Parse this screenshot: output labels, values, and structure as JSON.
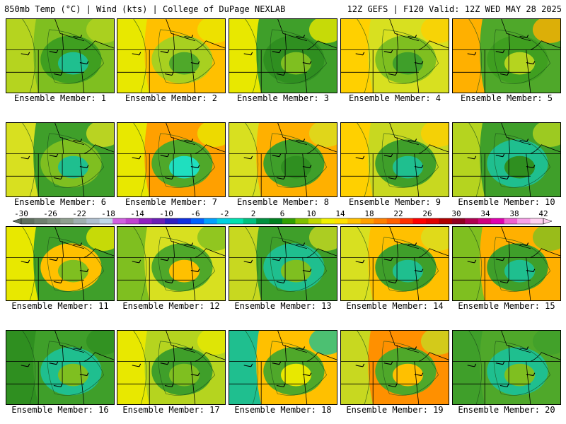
{
  "header": {
    "left": "850mb Temp (°C) | Wind (kts) | College of DuPage NEXLAB",
    "right": "12Z GEFS | F120 Valid: 12Z WED MAY 28 2025"
  },
  "colorbar": {
    "labels": [
      "-30",
      "-26",
      "-22",
      "-18",
      "-14",
      "-10",
      "-6",
      "-2",
      "2",
      "6",
      "10",
      "14",
      "18",
      "22",
      "26",
      "30",
      "34",
      "38",
      "42"
    ],
    "colors": [
      "#5f6f5f",
      "#6f7f6f",
      "#7f8f7f",
      "#8f9f8f",
      "#9fafaf",
      "#afbfcf",
      "#c0d8e8",
      "#d060e0",
      "#c040d0",
      "#9020c0",
      "#6a1fb5",
      "#3020c0",
      "#1030e0",
      "#0060ff",
      "#00a0ff",
      "#00d0e0",
      "#00e0b0",
      "#00c080",
      "#009040",
      "#008020",
      "#30a000",
      "#80c000",
      "#c0d800",
      "#f0f000",
      "#ffe000",
      "#ffc000",
      "#ffa000",
      "#ff8000",
      "#ff6000",
      "#ff3000",
      "#ff0000",
      "#e00000",
      "#b00000",
      "#900020",
      "#b00050",
      "#d00080",
      "#e000b0",
      "#f060d0",
      "#f8a0e8",
      "#ffd0f0"
    ]
  },
  "members": [
    {
      "label": "Ensemble Member: 1",
      "scheme": [
        "#7fbf20",
        "#3f9f20",
        "#1fbf8f",
        "#b5d41f"
      ]
    },
    {
      "label": "Ensemble Member: 2",
      "scheme": [
        "#ffc000",
        "#a8d020",
        "#4fa82a",
        "#e8e800"
      ]
    },
    {
      "label": "Ensemble Member: 3",
      "scheme": [
        "#3f9f2a",
        "#2f8f20",
        "#7fbf20",
        "#e8e800"
      ]
    },
    {
      "label": "Ensemble Member: 4",
      "scheme": [
        "#d8e020",
        "#7fbf20",
        "#3f9f2a",
        "#ffd000"
      ]
    },
    {
      "label": "Ensemble Member: 5",
      "scheme": [
        "#4fa82a",
        "#3f9f20",
        "#b5d41f",
        "#ffb000"
      ]
    },
    {
      "label": "Ensemble Member: 6",
      "scheme": [
        "#3f9f2a",
        "#7fbf20",
        "#1fbf8f",
        "#d8e020"
      ]
    },
    {
      "label": "Ensemble Member: 7",
      "scheme": [
        "#ffa000",
        "#4fa82a",
        "#1fdfbf",
        "#e8e800"
      ]
    },
    {
      "label": "Ensemble Member: 8",
      "scheme": [
        "#ffb000",
        "#3f9f2a",
        "#2f8f20",
        "#d8e020"
      ]
    },
    {
      "label": "Ensemble Member: 9",
      "scheme": [
        "#c8d820",
        "#3f9f2a",
        "#1fbf8f",
        "#ffd000"
      ]
    },
    {
      "label": "Ensemble Member: 10",
      "scheme": [
        "#3f9f2a",
        "#1fbf8f",
        "#2f8f20",
        "#b5d41f"
      ]
    },
    {
      "label": "Ensemble Member: 11",
      "scheme": [
        "#3f9f2a",
        "#ffc000",
        "#7fbf20",
        "#e8e800"
      ]
    },
    {
      "label": "Ensemble Member: 12",
      "scheme": [
        "#d8e020",
        "#4fa82a",
        "#ffc000",
        "#7fbf20"
      ]
    },
    {
      "label": "Ensemble Member: 13",
      "scheme": [
        "#3f9f2a",
        "#1fbf8f",
        "#7fbf20",
        "#c8d820"
      ]
    },
    {
      "label": "Ensemble Member: 14",
      "scheme": [
        "#ffc000",
        "#3f9f2a",
        "#1fbf8f",
        "#d8e020"
      ]
    },
    {
      "label": "Ensemble Member: 15",
      "scheme": [
        "#ffb000",
        "#3f9f2a",
        "#1fbf8f",
        "#7fbf20"
      ]
    },
    {
      "label": "Ensemble Member: 16",
      "scheme": [
        "#3f9f2a",
        "#1fbf8f",
        "#7fbf20",
        "#2f8f20"
      ]
    },
    {
      "label": "Ensemble Member: 17",
      "scheme": [
        "#b5d41f",
        "#3f9f2a",
        "#7fbf20",
        "#e8e800"
      ]
    },
    {
      "label": "Ensemble Member: 18",
      "scheme": [
        "#ffc000",
        "#4fa82a",
        "#e8e800",
        "#1fbf8f"
      ]
    },
    {
      "label": "Ensemble Member: 19",
      "scheme": [
        "#ff9000",
        "#4fa82a",
        "#ffc000",
        "#c8d820"
      ]
    },
    {
      "label": "Ensemble Member: 20",
      "scheme": [
        "#4fa82a",
        "#1fbf8f",
        "#7fbf20",
        "#3f9f2a"
      ]
    }
  ]
}
